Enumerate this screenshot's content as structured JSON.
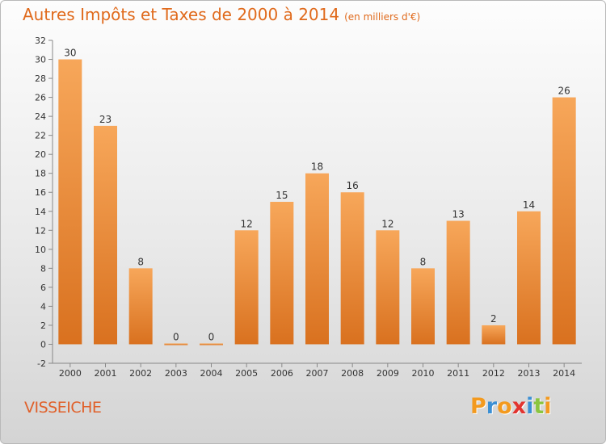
{
  "header": {
    "title": "Autres Impôts et Taxes de 2000 à 2014",
    "unit": "(en milliers d'€)"
  },
  "footer": {
    "commune": "VISSEICHE",
    "logo": [
      "P",
      "r",
      "o",
      "x",
      "i",
      "t",
      "i"
    ]
  },
  "colors": {
    "title": "#e06a1c",
    "bar_light": "#f7a75a",
    "bar_dark": "#d9711f",
    "logo": [
      "#f39a1f",
      "#3b8fd4",
      "#f39a1f",
      "#e2342f",
      "#3b8fd4",
      "#8bc540",
      "#f39a1f"
    ]
  },
  "chart_data": {
    "type": "bar",
    "title": "Autres Impôts et Taxes de 2000 à 2014",
    "subtitle": "(en milliers d'€)",
    "categories": [
      "2000",
      "2001",
      "2002",
      "2003",
      "2004",
      "2005",
      "2006",
      "2007",
      "2008",
      "2009",
      "2010",
      "2011",
      "2012",
      "2013",
      "2014"
    ],
    "values": [
      30,
      23,
      8,
      0,
      0,
      12,
      15,
      18,
      16,
      12,
      8,
      13,
      2,
      14,
      26
    ],
    "ylim": [
      -2,
      32
    ],
    "yticks": [
      -2,
      0,
      2,
      4,
      6,
      8,
      10,
      12,
      14,
      16,
      18,
      20,
      22,
      24,
      26,
      28,
      30,
      32
    ],
    "grid": false,
    "legend": "none"
  }
}
